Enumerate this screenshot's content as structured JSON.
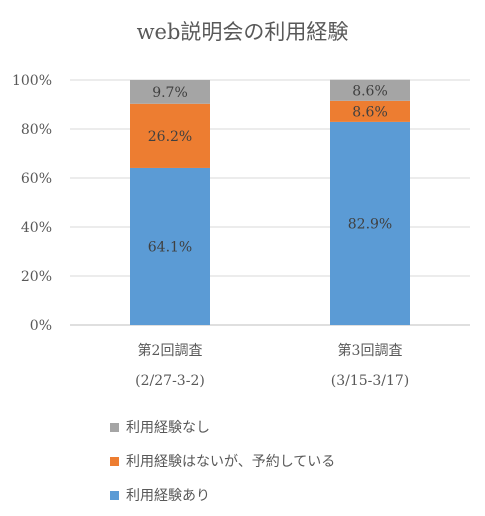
{
  "title": "web説明会の利用経験",
  "chart_data": {
    "type": "bar",
    "stacked": true,
    "categories": [
      [
        "第2回調査",
        "(2/27-3-2)"
      ],
      [
        "第3回調査",
        "(3/15-3/17)"
      ]
    ],
    "series": [
      {
        "name": "利用経験あり",
        "values": [
          64.1,
          82.9
        ],
        "labels": [
          "64.1%",
          "82.9%"
        ],
        "color": "#5b9bd5"
      },
      {
        "name": "利用経験はないが、予約している",
        "values": [
          26.2,
          8.6
        ],
        "labels": [
          "26.2%",
          "8.6%"
        ],
        "color": "#ed7d31"
      },
      {
        "name": "利用経験なし",
        "values": [
          9.7,
          8.6
        ],
        "labels": [
          "9.7%",
          "8.6%"
        ],
        "color": "#a5a5a5"
      }
    ],
    "y_ticks": [
      "0%",
      "20%",
      "40%",
      "60%",
      "80%",
      "100%"
    ],
    "ylim": [
      0,
      100
    ],
    "grid": true,
    "legend_position": "bottom-left",
    "legend_order": [
      "利用経験なし",
      "利用経験はないが、予約している",
      "利用経験あり"
    ]
  }
}
